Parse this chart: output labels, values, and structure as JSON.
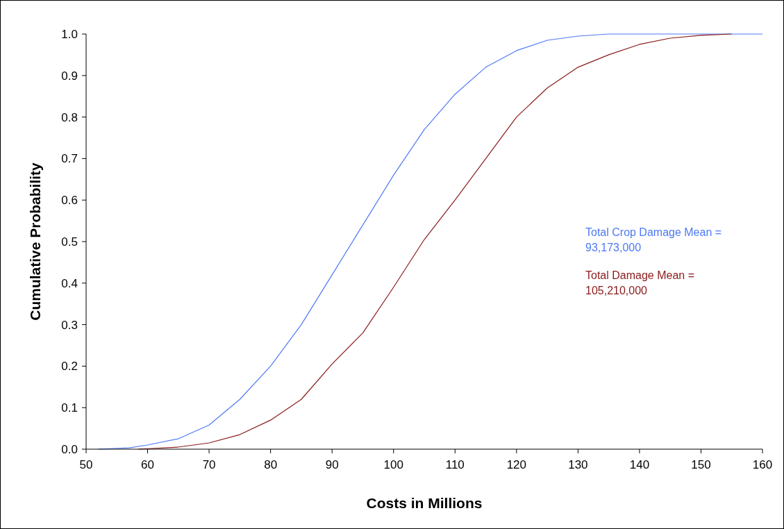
{
  "chart_data": {
    "type": "line",
    "xlabel": "Costs in Millions",
    "ylabel": "Cumulative Probability",
    "xlim": [
      50,
      160
    ],
    "xticks": [
      50,
      60,
      70,
      80,
      90,
      100,
      110,
      120,
      130,
      140,
      150,
      160
    ],
    "ylim": [
      0,
      1
    ],
    "yticks": [
      {
        "value": 0,
        "label": "0.0"
      },
      {
        "value": 0.1,
        "label": "0.1"
      },
      {
        "value": 0.2,
        "label": "0.2"
      },
      {
        "value": 0.3,
        "label": "0.3"
      },
      {
        "value": 0.4,
        "label": "0.4"
      },
      {
        "value": 0.5,
        "label": "0.5"
      },
      {
        "value": 0.6,
        "label": "0.6"
      },
      {
        "value": 0.7,
        "label": "0.7"
      },
      {
        "value": 0.8,
        "label": "0.8"
      },
      {
        "value": 0.9,
        "label": "0.9"
      },
      {
        "value": 1,
        "label": "1.0"
      }
    ],
    "grid": false,
    "marker": "none",
    "line_style": "solid",
    "series": [
      {
        "color": "#4d79f5",
        "x": [
          52,
          57,
          60,
          65,
          70,
          75,
          80,
          85,
          90,
          95,
          100,
          105,
          110,
          115,
          120,
          125,
          130,
          135,
          160
        ],
        "values": [
          0,
          0.003,
          0.01,
          0.025,
          0.058,
          0.12,
          0.2,
          0.3,
          0.42,
          0.54,
          0.66,
          0.77,
          0.855,
          0.92,
          0.96,
          0.985,
          0.995,
          1,
          1
        ]
      },
      {
        "color": "#8b1a1a",
        "x": [
          58.5,
          65,
          70,
          75,
          80,
          85,
          90,
          95,
          100,
          105,
          110,
          115,
          120,
          125,
          130,
          135,
          140,
          145,
          150,
          155
        ],
        "values": [
          0,
          0.005,
          0.015,
          0.035,
          0.07,
          0.12,
          0.205,
          0.28,
          0.39,
          0.505,
          0.6,
          0.7,
          0.8,
          0.87,
          0.92,
          0.95,
          0.975,
          0.99,
          0.997,
          1
        ]
      }
    ],
    "annotations": [
      "Total Crop Damage Mean = 93,173,000",
      "Total Damage Mean = 105,210,000"
    ]
  }
}
